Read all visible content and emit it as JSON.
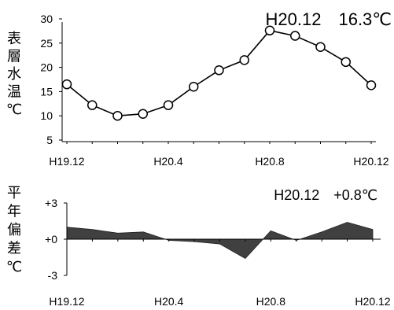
{
  "chart_data": [
    {
      "type": "line",
      "ylabel": [
        "表",
        "層",
        "水",
        "温",
        "℃"
      ],
      "annotation": "H20.12　16.3℃",
      "ylim": [
        5,
        30
      ],
      "yticks": [
        "5",
        "10",
        "15",
        "20",
        "25",
        "30"
      ],
      "xtick_labels": [
        "H19.12",
        "H20.4",
        "H20.8",
        "H20.12"
      ],
      "x": [
        "H19.12",
        "H20.1",
        "H20.2",
        "H20.3",
        "H20.4",
        "H20.5",
        "H20.6",
        "H20.7",
        "H20.8",
        "H20.9",
        "H20.10",
        "H20.11",
        "H20.12"
      ],
      "values": [
        16.5,
        12.2,
        10.0,
        10.4,
        12.2,
        16.0,
        19.4,
        21.5,
        27.6,
        26.5,
        24.2,
        21.1,
        16.3
      ],
      "marker": "open-circle",
      "color": "#000000"
    },
    {
      "type": "area",
      "ylabel": [
        "平",
        "年",
        "偏",
        "差",
        "℃"
      ],
      "annotation": "H20.12　+0.8℃",
      "ylim": [
        -3,
        3
      ],
      "yticks": [
        "-3",
        "+0",
        "+3"
      ],
      "xtick_labels": [
        "H19.12",
        "H20.4",
        "H20.8",
        "H20.12"
      ],
      "x": [
        "H19.12",
        "H20.1",
        "H20.2",
        "H20.3",
        "H20.4",
        "H20.5",
        "H20.6",
        "H20.7",
        "H20.8",
        "H20.9",
        "H20.10",
        "H20.11",
        "H20.12"
      ],
      "values": [
        1.0,
        0.8,
        0.5,
        0.6,
        -0.1,
        -0.2,
        -0.4,
        -1.6,
        0.7,
        -0.1,
        0.6,
        1.4,
        0.8
      ],
      "color": "#404040"
    }
  ]
}
